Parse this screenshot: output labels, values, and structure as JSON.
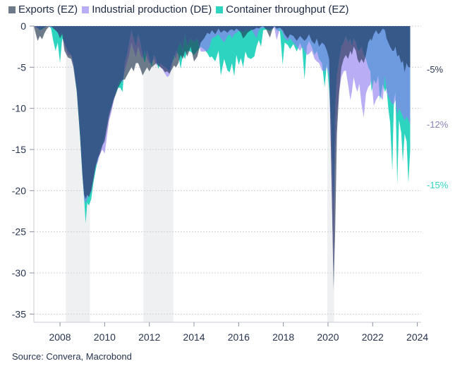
{
  "chart_data": {
    "type": "area",
    "title": "",
    "xlabel": "",
    "ylabel": "",
    "xlim": [
      2006.83,
      2024.17
    ],
    "ylim": [
      -36,
      0
    ],
    "grid": true,
    "legend_position": "top-left",
    "x_ticks": [
      2008,
      2010,
      2012,
      2014,
      2016,
      2018,
      2020,
      2022,
      2024
    ],
    "x_tick_labels": [
      "2008",
      "2010",
      "2012",
      "2014",
      "2016",
      "2018",
      "2020",
      "2022",
      "2024"
    ],
    "y_ticks": [
      0,
      -5,
      -10,
      -15,
      -20,
      -25,
      -30,
      -35
    ],
    "y_tick_labels": [
      "0",
      "-5",
      "-10",
      "-15",
      "-20",
      "-25",
      "-30",
      "-35"
    ],
    "shaded_periods": [
      [
        2008.26,
        2009.34
      ],
      [
        2011.73,
        2013.08
      ],
      [
        2019.97,
        2020.28
      ]
    ],
    "shade_color": "#EFF0F2",
    "overlap_colors": {
      "exports_industrial": "#5A5F8E",
      "exports_container": "#23707A",
      "industrial_container": "#6E9BE0",
      "all_three": "#36598A"
    },
    "x": [
      2006.83,
      2006.92,
      2007.0,
      2007.1,
      2007.2,
      2007.3,
      2007.4,
      2007.5,
      2007.6,
      2007.7,
      2007.8,
      2007.9,
      2008.0,
      2008.1,
      2008.2,
      2008.35,
      2008.5,
      2008.6,
      2008.75,
      2008.9,
      2009.0,
      2009.08,
      2009.15,
      2009.22,
      2009.3,
      2009.4,
      2009.5,
      2009.6,
      2009.7,
      2009.8,
      2009.9,
      2010.0,
      2010.1,
      2010.2,
      2010.3,
      2010.4,
      2010.5,
      2010.6,
      2010.7,
      2010.8,
      2010.9,
      2011.0,
      2011.1,
      2011.2,
      2011.3,
      2011.4,
      2011.5,
      2011.6,
      2011.7,
      2011.8,
      2011.9,
      2012.0,
      2012.1,
      2012.2,
      2012.3,
      2012.4,
      2012.5,
      2012.6,
      2012.7,
      2012.8,
      2012.9,
      2013.0,
      2013.1,
      2013.2,
      2013.3,
      2013.4,
      2013.5,
      2013.6,
      2013.7,
      2013.85,
      2014.0,
      2014.15,
      2014.3,
      2014.45,
      2014.6,
      2014.7,
      2014.8,
      2014.95,
      2015.1,
      2015.2,
      2015.35,
      2015.5,
      2015.6,
      2015.7,
      2015.8,
      2015.9,
      2016.0,
      2016.1,
      2016.2,
      2016.3,
      2016.4,
      2016.55,
      2016.7,
      2016.8,
      2016.9,
      2017.0,
      2017.1,
      2017.25,
      2017.4,
      2017.5,
      2017.6,
      2017.7,
      2017.85,
      2017.97,
      2018.06,
      2018.2,
      2018.3,
      2018.45,
      2018.6,
      2018.75,
      2018.85,
      2018.95,
      2019.05,
      2019.15,
      2019.27,
      2019.4,
      2019.5,
      2019.6,
      2019.73,
      2019.85,
      2019.95,
      2020.05,
      2020.15,
      2020.25,
      2020.32,
      2020.4,
      2020.5,
      2020.6,
      2020.7,
      2020.8,
      2020.9,
      2021.0,
      2021.07,
      2021.15,
      2021.25,
      2021.32,
      2021.4,
      2021.5,
      2021.6,
      2021.7,
      2021.8,
      2021.9,
      2021.95,
      2022.05,
      2022.15,
      2022.25,
      2022.33,
      2022.45,
      2022.55,
      2022.62,
      2022.7,
      2022.78,
      2022.88,
      2022.95,
      2023.02,
      2023.1,
      2023.18,
      2023.28,
      2023.35,
      2023.43,
      2023.52,
      2023.6,
      2023.68
    ],
    "series": [
      {
        "name": "Exports (EZ)",
        "color": "#6C7A89",
        "values": [
          0,
          -1.0,
          -1.8,
          -1.2,
          -1.6,
          -0.9,
          -0.4,
          -0.1,
          0,
          -0.3,
          -0.5,
          -0.8,
          -1.5,
          -1.0,
          -3.0,
          -3.8,
          -4.0,
          -5.0,
          -8.0,
          -13.5,
          -18.0,
          -20.5,
          -21.0,
          -20.5,
          -20.8,
          -20.0,
          -18.5,
          -17.0,
          -16.0,
          -15.5,
          -14.5,
          -14.0,
          -12.5,
          -11.0,
          -10.0,
          -9.0,
          -8.3,
          -7.5,
          -7.0,
          -6.5,
          -6.5,
          -6.0,
          -5.5,
          -5.0,
          -5.5,
          -4.5,
          -4.5,
          -5.2,
          -6.0,
          -5.5,
          -5.0,
          -5.5,
          -5.0,
          -4.8,
          -4.5,
          -4.8,
          -5.0,
          -5.2,
          -5.6,
          -5.5,
          -5.8,
          -5.3,
          -4.8,
          -5.0,
          -4.5,
          -3.5,
          -4.0,
          -3.0,
          -3.7,
          -2.5,
          -4.3,
          -3.7,
          -2.0,
          -1.5,
          -0.8,
          -1.0,
          -0.5,
          -1.0,
          -0.3,
          -0.8,
          -0.5,
          -0.8,
          -0.5,
          -0.4,
          -0.6,
          -0.3,
          -0.5,
          -0.8,
          -1.5,
          -1.2,
          -0.8,
          -0.5,
          -0.4,
          -0.2,
          -0.3,
          -0.1,
          0,
          -0.5,
          -1.4,
          -0.5,
          0,
          -0.3,
          -0.2,
          -0.5,
          -1.0,
          -1.5,
          -1.0,
          -1.2,
          -1.8,
          -1.2,
          -1.5,
          -1.8,
          -1.5,
          -1.0,
          -1.8,
          -2.2,
          -1.5,
          -2.5,
          -2.0,
          -2.3,
          -3.0,
          -4.0,
          -18.0,
          -32.0,
          -25.0,
          -13.0,
          -8.0,
          -5.0,
          -4.0,
          -3.5,
          -4.0,
          -3.0,
          -3.5,
          -2.5,
          -3.0,
          -4.0,
          -4.5,
          -4.0,
          -4.5,
          -3.5,
          -2.0,
          -1.5,
          -1.8,
          -1.0,
          -0.5,
          -1.0,
          -0.8,
          -0.3,
          -0.5,
          -1.5,
          -2.0,
          -2.5,
          -3.0,
          -3.0,
          -2.5,
          -3.7,
          -3.5,
          -4.5,
          -4.2,
          -5.6,
          -4.5,
          -5.0,
          -5.0
        ]
      },
      {
        "name": "Industrial production (DE)",
        "color": "#B9ADF5",
        "values": [
          0,
          -0.2,
          -0.3,
          -0.5,
          -0.3,
          -0.2,
          0,
          0,
          -0.2,
          -0.1,
          -0.5,
          -0.8,
          -1.2,
          -0.8,
          -2.3,
          -3.5,
          -3.6,
          -4.8,
          -7.5,
          -13.0,
          -17.5,
          -21.0,
          -21.5,
          -21.0,
          -20.5,
          -20.0,
          -18.5,
          -17.0,
          -16.5,
          -15.5,
          -15.0,
          -15.5,
          -13.5,
          -11.5,
          -10.5,
          -9.2,
          -8.0,
          -7.2,
          -6.5,
          -6.8,
          -5.5,
          -4.5,
          -3.5,
          -2.0,
          -3.0,
          -3.8,
          -2.5,
          -3.5,
          -4.0,
          -3.0,
          -4.0,
          -4.5,
          -4.5,
          -4.0,
          -4.8,
          -4.5,
          -5.0,
          -5.3,
          -5.8,
          -6.2,
          -6.0,
          -5.0,
          -3.5,
          -4.0,
          -2.5,
          -2.0,
          -3.0,
          -1.0,
          -2.5,
          -1.5,
          -2.0,
          -1.5,
          -3.1,
          -3.1,
          -3.0,
          -2.5,
          -1.5,
          -1.3,
          -1.0,
          -1.5,
          -2.0,
          -1.2,
          -1.0,
          -1.5,
          -1.0,
          -0.8,
          -0.6,
          -0.5,
          -0.8,
          -0.4,
          -0.6,
          -0.3,
          -1.0,
          -1.5,
          -0.5,
          -0.3,
          -0.2,
          -0.3,
          -0.4,
          -0.3,
          -0.2,
          -1.7,
          -0.3,
          -0.8,
          -1.5,
          -1.8,
          -1.5,
          -2.0,
          -2.5,
          -3.0,
          -2.5,
          -3.0,
          -3.5,
          -3.4,
          -3.0,
          -4.0,
          -4.3,
          -4.5,
          -5.4,
          -5.5,
          -5.0,
          -6.0,
          -17.0,
          -30.0,
          -16.0,
          -11.0,
          -8.0,
          -6.2,
          -5.5,
          -5.4,
          -7.1,
          -9.0,
          -8.0,
          -6.2,
          -7.5,
          -8.0,
          -7.0,
          -9.5,
          -11.1,
          -8.2,
          -7.4,
          -7.1,
          -6.5,
          -9.7,
          -9.0,
          -8.5,
          -8.5,
          -9.0,
          -6.0,
          -8.0,
          -8.5,
          -9.0,
          -9.5,
          -9.5,
          -9.0,
          -10.8,
          -10.0,
          -10.5,
          -11.0,
          -11.5,
          -11.0,
          -11.4,
          -12.0
        ]
      },
      {
        "name": "Container throughput (EZ)",
        "color": "#2DD4BF",
        "values": [
          0,
          0,
          -0.2,
          -0.5,
          -0.4,
          -0.2,
          0,
          0,
          -0.3,
          -1.8,
          -3.0,
          -2.0,
          -4.5,
          -1.5,
          -2.0,
          -3.0,
          -3.5,
          -4.5,
          -7.8,
          -13.5,
          -18.0,
          -21.0,
          -24.0,
          -21.5,
          -21.8,
          -21.0,
          -19.0,
          -17.5,
          -16.2,
          -15.0,
          -14.5,
          -13.5,
          -12.0,
          -10.5,
          -9.8,
          -8.8,
          -8.2,
          -7.5,
          -7.5,
          -8.0,
          -4.5,
          -3.5,
          -2.0,
          -0.5,
          -1.5,
          -2.5,
          -1.0,
          -2.0,
          -3.5,
          -4.5,
          -3.0,
          -4.0,
          -5.0,
          -3.5,
          -4.0,
          -5.2,
          -4.5,
          -4.8,
          -5.0,
          -5.2,
          -5.5,
          -4.5,
          -4.0,
          -3.0,
          -3.5,
          -5.2,
          -3.5,
          -4.0,
          -3.0,
          -3.1,
          -3.5,
          -3.0,
          -2.5,
          -2.8,
          -3.3,
          -3.8,
          -3.7,
          -4.3,
          -3.0,
          -6.0,
          -4.0,
          -5.4,
          -5.6,
          -4.5,
          -6.1,
          -3.5,
          -4.7,
          -3.9,
          -5.0,
          -3.1,
          -3.8,
          -4.0,
          -3.7,
          -2.5,
          -1.7,
          -2.5,
          -0.5,
          -0.4,
          -0.6,
          -0.3,
          0,
          -0.5,
          -0.6,
          -4.7,
          -2.0,
          -2.3,
          -2.8,
          -2.2,
          -3.1,
          -2.0,
          -2.8,
          -6.5,
          -2.5,
          -1.8,
          -2.5,
          -3.5,
          -3.0,
          -4.0,
          -4.5,
          -7.4,
          -4.5,
          -7.7,
          -12.0,
          -22.0,
          -10.0,
          -6.0,
          -4.0,
          -2.5,
          -2.0,
          -1.2,
          -2.0,
          -1.5,
          -2.5,
          -1.5,
          -2.0,
          -2.8,
          -3.0,
          -2.5,
          -3.5,
          -4.0,
          -5.0,
          -5.5,
          -8.0,
          -6.5,
          -7.0,
          -6.0,
          -9.0,
          -7.0,
          -8.0,
          -7.5,
          -10.0,
          -11.7,
          -17.6,
          -9.0,
          -8.0,
          -19.3,
          -11.4,
          -13.0,
          -16.5,
          -13.1,
          -14.0,
          -19.1,
          -15.0
        ]
      }
    ],
    "annotations": [
      {
        "text": "-5%",
        "color": "#2B3A55",
        "series": "Exports (EZ)"
      },
      {
        "text": "-12%",
        "color": "#8A80B8",
        "series": "Industrial production (DE)"
      },
      {
        "text": "-15%",
        "color": "#2DD4BF",
        "series": "Container throughput (EZ)"
      }
    ]
  },
  "source": "Source: Convera, Macrobond"
}
